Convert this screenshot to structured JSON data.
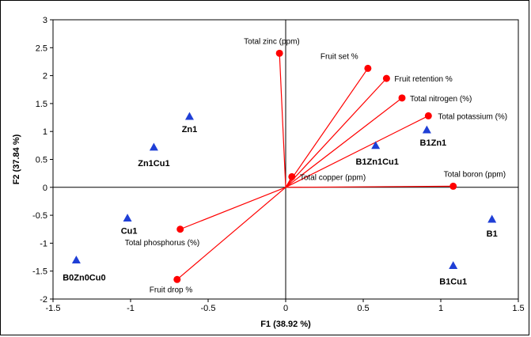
{
  "chart_data": {
    "type": "scatter",
    "subtype": "biplot",
    "title": "",
    "xlabel": "F1 (38.92 %)",
    "ylabel": "F2 (37.84 %)",
    "xlim": [
      -1.5,
      1.5
    ],
    "ylim": [
      -2,
      3
    ],
    "xticks": [
      "-1.5",
      "-1",
      "-0.5",
      "0",
      "0.5",
      "1",
      "1.5"
    ],
    "yticks": [
      "-2",
      "-1.5",
      "-1",
      "-0.5",
      "0",
      "0.5",
      "1",
      "1.5",
      "2",
      "2.5",
      "3"
    ],
    "grid": false,
    "colors": {
      "variables": "#ff0000",
      "observations": "#1f3fd6"
    },
    "variables": [
      {
        "label": "Total zinc (ppm)",
        "x": -0.04,
        "y": 2.4
      },
      {
        "label": "Fruit set %",
        "x": 0.53,
        "y": 2.13
      },
      {
        "label": "Fruit retention %",
        "x": 0.65,
        "y": 1.95
      },
      {
        "label": "Total nitrogen (%)",
        "x": 0.75,
        "y": 1.6
      },
      {
        "label": "Total potassium (%)",
        "x": 0.92,
        "y": 1.28
      },
      {
        "label": "Total copper (ppm)",
        "x": 0.04,
        "y": 0.19
      },
      {
        "label": "Total boron (ppm)",
        "x": 1.08,
        "y": 0.02
      },
      {
        "label": "Total phosphorus (%)",
        "x": -0.68,
        "y": -0.75
      },
      {
        "label": "Fruit drop %",
        "x": -0.7,
        "y": -1.65
      }
    ],
    "observations": [
      {
        "label": "Zn1",
        "x": -0.62,
        "y": 1.27
      },
      {
        "label": "Zn1Cu1",
        "x": -0.85,
        "y": 0.72
      },
      {
        "label": "B1Zn1Cu1",
        "x": 0.58,
        "y": 0.75
      },
      {
        "label": "B1Zn1",
        "x": 0.91,
        "y": 1.03
      },
      {
        "label": "Cu1",
        "x": -1.02,
        "y": -0.55
      },
      {
        "label": "B0Zn0Cu0",
        "x": -1.35,
        "y": -1.3
      },
      {
        "label": "B1",
        "x": 1.33,
        "y": -0.57
      },
      {
        "label": "B1Cu1",
        "x": 1.08,
        "y": -1.4
      }
    ]
  }
}
